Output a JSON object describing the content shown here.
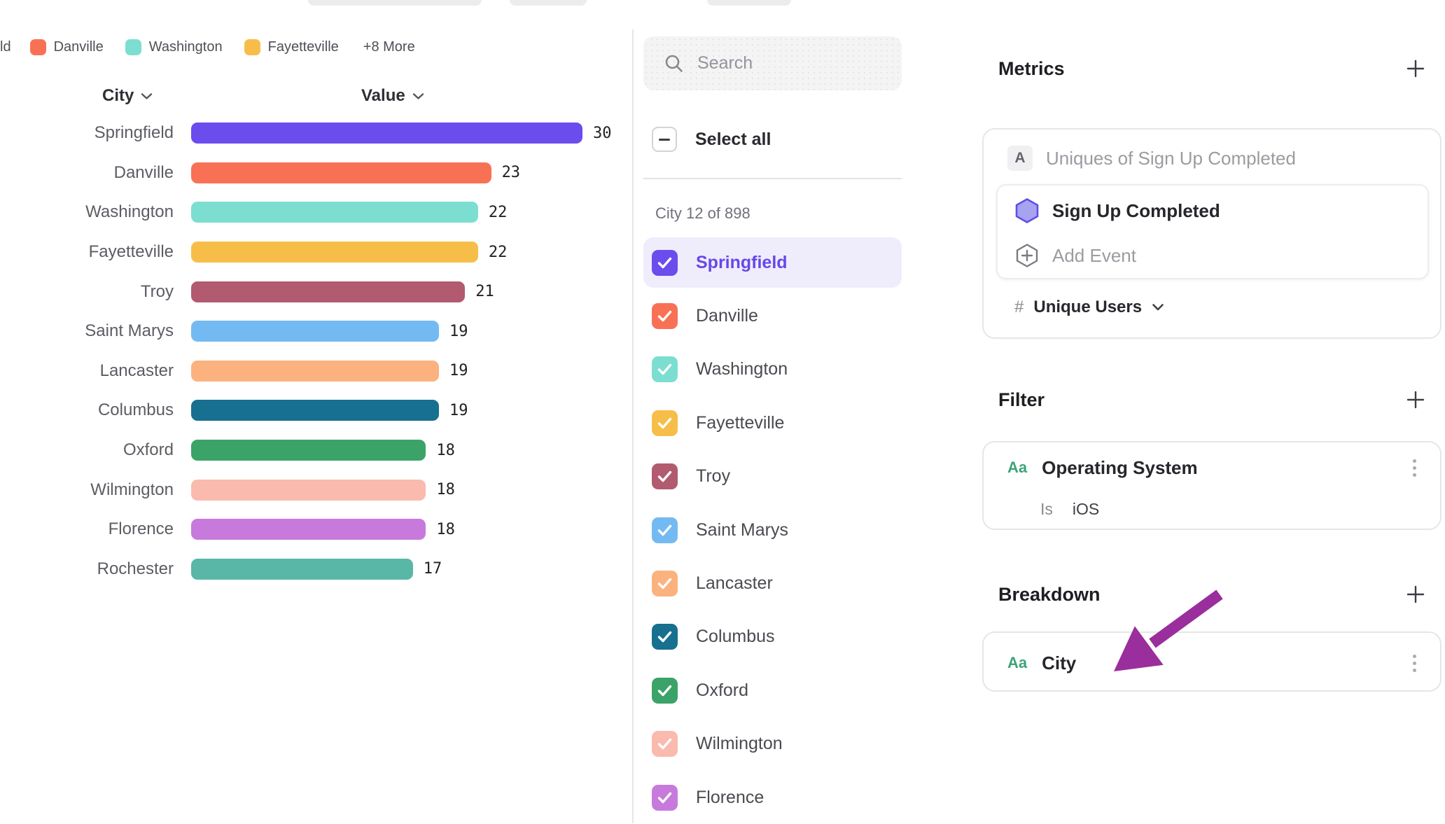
{
  "chart_data": {
    "type": "bar",
    "orientation": "horizontal",
    "title": "",
    "xlabel": "Value",
    "ylabel": "City",
    "xlim": [
      0,
      30
    ],
    "grid": false,
    "categories": [
      "Springfield",
      "Danville",
      "Washington",
      "Fayetteville",
      "Troy",
      "Saint Marys",
      "Lancaster",
      "Columbus",
      "Oxford",
      "Wilmington",
      "Florence",
      "Rochester"
    ],
    "values": [
      30,
      23,
      22,
      22,
      21,
      19,
      19,
      19,
      18,
      18,
      18,
      17
    ],
    "colors": [
      "#6B4CEC",
      "#F97155",
      "#7CDED0",
      "#F6BE49",
      "#B25A70",
      "#74BAF2",
      "#FBB27E",
      "#17708F",
      "#3BA368",
      "#FABAAE",
      "#C77ADC",
      "#58B7A7"
    ],
    "legend": {
      "truncated_first_label": "ld",
      "items": [
        {
          "label": "Danville",
          "color": "#F97155"
        },
        {
          "label": "Washington",
          "color": "#7CDED0"
        },
        {
          "label": "Fayetteville",
          "color": "#F6BE49"
        }
      ],
      "overflow_label": "+8 More"
    },
    "column_headers": {
      "category": "City",
      "value": "Value"
    }
  },
  "city_selector": {
    "search_placeholder": "Search",
    "select_all_label": "Select all",
    "select_all_state": "indeterminate",
    "count_label": "City 12 of 898",
    "items": [
      {
        "label": "Springfield",
        "color": "#6B4CEC",
        "checked": true,
        "highlighted": true
      },
      {
        "label": "Danville",
        "color": "#F97155",
        "checked": true,
        "highlighted": false
      },
      {
        "label": "Washington",
        "color": "#7CDED0",
        "checked": true,
        "highlighted": false
      },
      {
        "label": "Fayetteville",
        "color": "#F6BE49",
        "checked": true,
        "highlighted": false
      },
      {
        "label": "Troy",
        "color": "#B25A70",
        "checked": true,
        "highlighted": false
      },
      {
        "label": "Saint Marys",
        "color": "#74BAF2",
        "checked": true,
        "highlighted": false
      },
      {
        "label": "Lancaster",
        "color": "#FBB27E",
        "checked": true,
        "highlighted": false
      },
      {
        "label": "Columbus",
        "color": "#17708F",
        "checked": true,
        "highlighted": false
      },
      {
        "label": "Oxford",
        "color": "#3BA368",
        "checked": true,
        "highlighted": false
      },
      {
        "label": "Wilmington",
        "color": "#FABAAE",
        "checked": true,
        "highlighted": false
      },
      {
        "label": "Florence",
        "color": "#C77ADC",
        "checked": true,
        "highlighted": false
      }
    ]
  },
  "inspector": {
    "metrics": {
      "title": "Metrics",
      "badge": "A",
      "summary": "Uniques of Sign Up Completed",
      "event_name": "Sign Up Completed",
      "add_event_label": "Add Event",
      "measure_prefix": "#",
      "measure_label": "Unique Users"
    },
    "filter": {
      "title": "Filter",
      "property_icon": "Aa",
      "property": "Operating System",
      "operator": "Is",
      "value": "iOS"
    },
    "breakdown": {
      "title": "Breakdown",
      "property_icon": "Aa",
      "property": "City"
    }
  },
  "annotation": {
    "arrow_color": "#9A2E9C"
  },
  "theme": {
    "accent": "#6B4CEC",
    "highlight_bg": "#EFEDFC",
    "aa_icon_color": "#3EA377"
  }
}
